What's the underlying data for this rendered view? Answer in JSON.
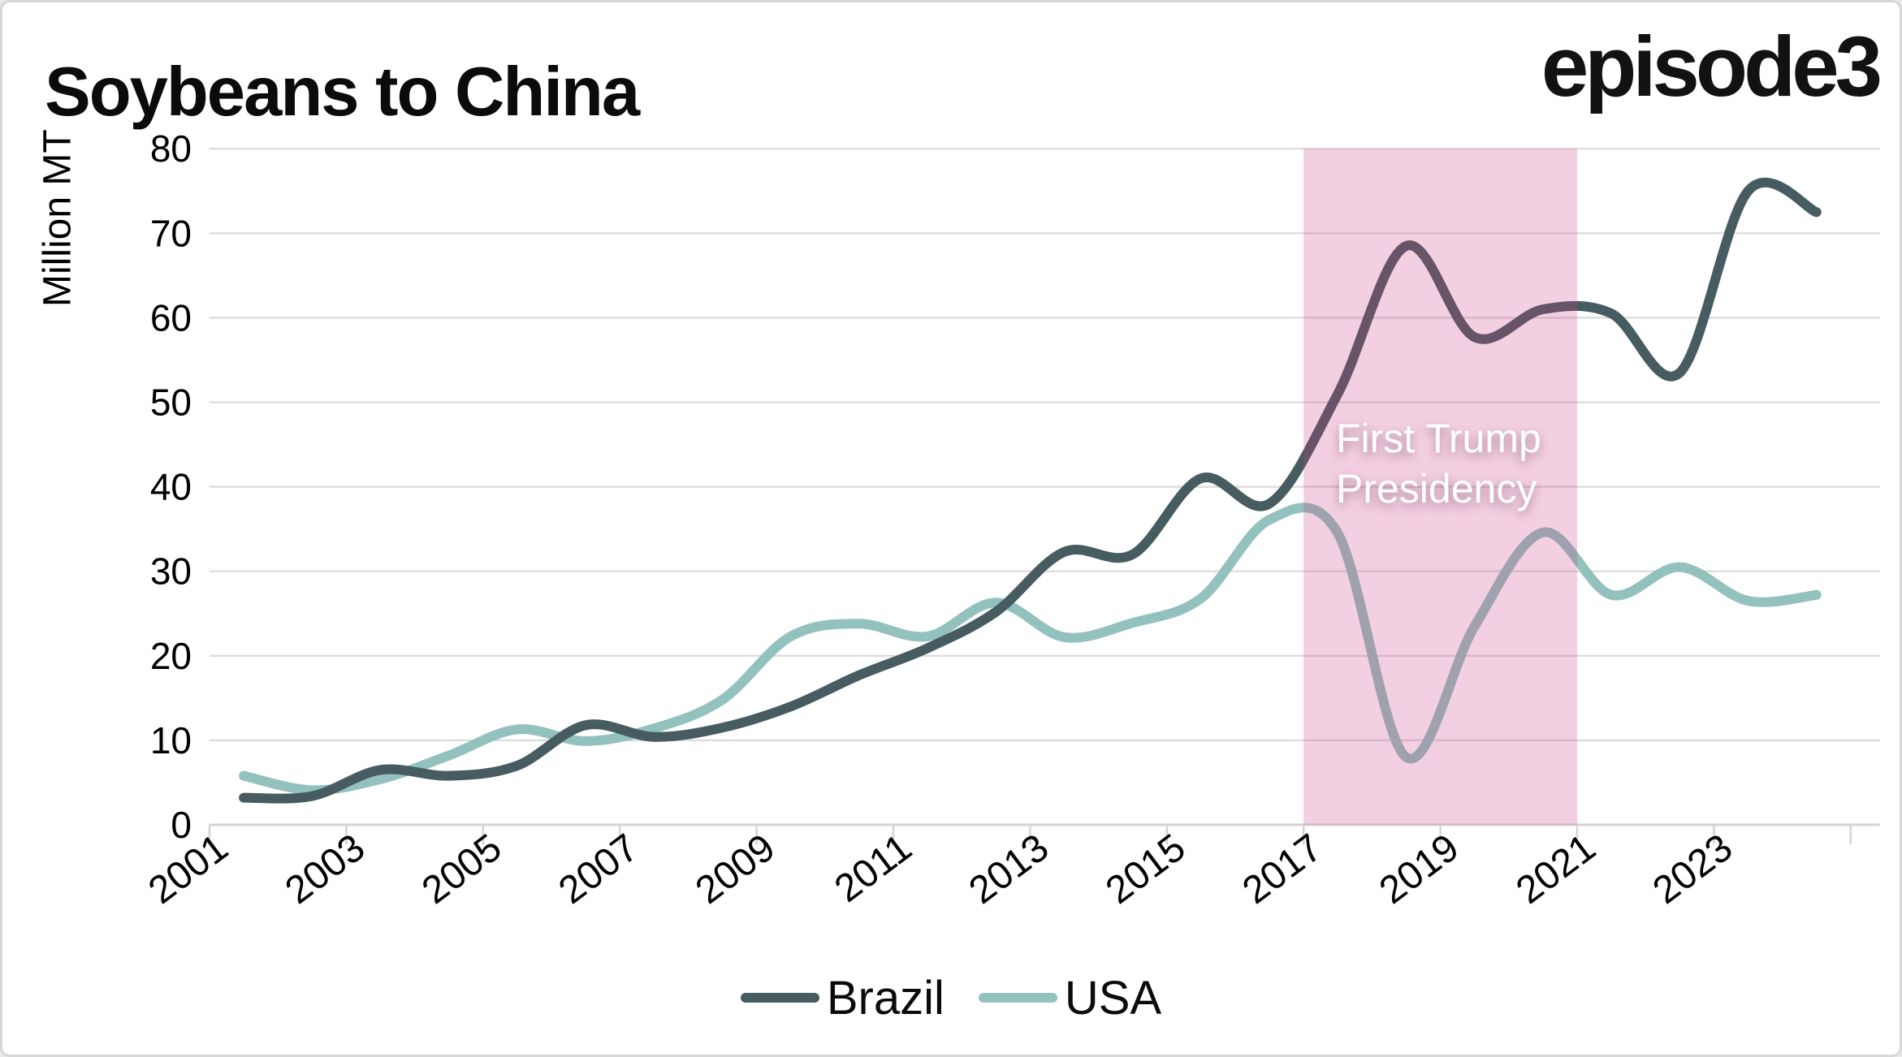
{
  "header": {
    "title": "Soybeans to China",
    "brand": "episode3"
  },
  "chart_data": {
    "type": "line",
    "title": "Soybeans to China",
    "xlabel": "",
    "ylabel": "Million MT",
    "ylim": [
      0,
      80
    ],
    "grid": "horizontal",
    "legend_position": "bottom",
    "x": [
      2001,
      2002,
      2003,
      2004,
      2005,
      2006,
      2007,
      2008,
      2009,
      2010,
      2011,
      2012,
      2013,
      2014,
      2015,
      2016,
      2017,
      2018,
      2019,
      2020,
      2021,
      2022,
      2023,
      2024
    ],
    "xtick_labels": [
      "2001",
      "2003",
      "2005",
      "2007",
      "2009",
      "2011",
      "2013",
      "2015",
      "2017",
      "2019",
      "2021",
      "2023"
    ],
    "ytick_labels": [
      "0",
      "10",
      "20",
      "30",
      "40",
      "50",
      "60",
      "70",
      "80"
    ],
    "series": [
      {
        "name": "Brazil",
        "color": "#475c60",
        "values": [
          3.2,
          3.4,
          6.5,
          5.8,
          7.0,
          11.8,
          10.4,
          11.5,
          14.0,
          17.7,
          20.9,
          25.2,
          32.3,
          32.0,
          41.0,
          38.0,
          51.0,
          68.5,
          57.7,
          61.0,
          60.5,
          53.5,
          75.0,
          72.5
        ]
      },
      {
        "name": "USA",
        "color": "#93c1be",
        "values": [
          5.8,
          4.1,
          5.4,
          8.2,
          11.3,
          9.9,
          11.4,
          14.8,
          22.3,
          23.8,
          22.3,
          26.3,
          22.2,
          23.9,
          26.8,
          36.1,
          34.5,
          8.0,
          23.5,
          34.6,
          27.2,
          30.5,
          26.5,
          27.2
        ]
      }
    ],
    "annotation": {
      "label_line1": "First Trump",
      "label_line2": "Presidency",
      "x_start": 2017,
      "x_end": 2021,
      "band_fill": "#cb3b83",
      "band_opacity": 0.24,
      "text_color": "#ffffff"
    },
    "colors": {
      "gridline": "#dadada",
      "axis": "#d3d3d3",
      "tick_text": "#000000"
    }
  }
}
